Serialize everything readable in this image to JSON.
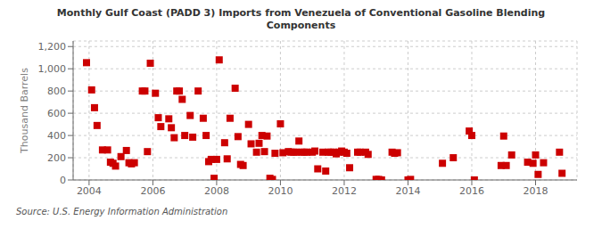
{
  "chart_data": {
    "type": "scatter",
    "title": "Monthly Gulf Coast (PADD 3) Imports from Venezuela of Conventional Gasoline Blending\nComponents",
    "ylabel": "Thousand Barrels",
    "annotations": [
      "Source: U.S. Energy Information Administration"
    ],
    "color": "#cc0000",
    "marker": "square",
    "grid": true,
    "xlim": [
      2003.5,
      2019.3
    ],
    "ylim": [
      0,
      1250
    ],
    "xticks": [
      2004,
      2006,
      2008,
      2010,
      2012,
      2014,
      2016,
      2018
    ],
    "yticks": [
      0,
      200,
      400,
      600,
      800,
      {
        "value": 1000,
        "label": "1,000"
      },
      {
        "value": 1200,
        "label": "1,200"
      }
    ],
    "x": [
      2003.92,
      2004.08,
      2004.17,
      2004.25,
      2004.42,
      2004.58,
      2004.67,
      2004.75,
      2004.83,
      2005.0,
      2005.17,
      2005.25,
      2005.33,
      2005.42,
      2005.67,
      2005.75,
      2005.83,
      2005.92,
      2006.08,
      2006.17,
      2006.25,
      2006.5,
      2006.58,
      2006.67,
      2006.75,
      2006.83,
      2006.92,
      2007.0,
      2007.17,
      2007.25,
      2007.42,
      2007.58,
      2007.67,
      2007.75,
      2007.83,
      2007.92,
      2008.0,
      2008.08,
      2008.25,
      2008.33,
      2008.42,
      2008.58,
      2008.67,
      2008.75,
      2008.83,
      2009.0,
      2009.08,
      2009.25,
      2009.33,
      2009.42,
      2009.5,
      2009.58,
      2009.67,
      2009.75,
      2009.83,
      2010.0,
      2010.08,
      2010.25,
      2010.33,
      2010.42,
      2010.5,
      2010.58,
      2010.67,
      2010.75,
      2010.83,
      2011.0,
      2011.08,
      2011.17,
      2011.33,
      2011.42,
      2011.5,
      2011.58,
      2011.67,
      2011.75,
      2011.83,
      2011.92,
      2012.0,
      2012.08,
      2012.17,
      2012.42,
      2012.5,
      2012.67,
      2012.75,
      2013.0,
      2013.08,
      2013.17,
      2013.5,
      2013.58,
      2013.67,
      2014.0,
      2014.08,
      2015.08,
      2015.42,
      2015.92,
      2016.0,
      2016.08,
      2016.92,
      2017.0,
      2017.08,
      2017.25,
      2017.75,
      2017.92,
      2018.0,
      2018.08,
      2018.25,
      2018.75,
      2018.83
    ],
    "values": [
      1055,
      810,
      650,
      490,
      270,
      270,
      160,
      150,
      125,
      210,
      265,
      155,
      145,
      155,
      800,
      800,
      255,
      1050,
      780,
      560,
      480,
      550,
      470,
      380,
      800,
      800,
      725,
      400,
      580,
      385,
      800,
      555,
      400,
      165,
      185,
      15,
      185,
      1080,
      335,
      190,
      555,
      825,
      390,
      140,
      130,
      500,
      325,
      250,
      330,
      400,
      255,
      395,
      15,
      5,
      240,
      505,
      245,
      255,
      250,
      250,
      250,
      350,
      250,
      250,
      250,
      250,
      260,
      100,
      250,
      80,
      250,
      250,
      250,
      235,
      250,
      260,
      250,
      240,
      110,
      250,
      250,
      250,
      230,
      5,
      5,
      0,
      250,
      240,
      245,
      0,
      5,
      150,
      200,
      440,
      400,
      0,
      130,
      395,
      130,
      225,
      160,
      150,
      225,
      50,
      155,
      250,
      60
    ]
  }
}
